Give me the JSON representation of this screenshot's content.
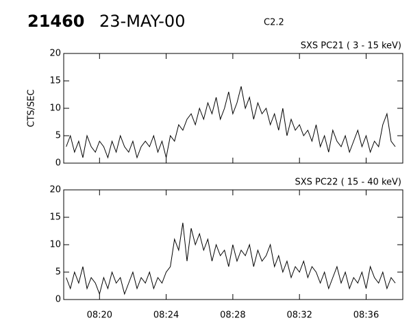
{
  "header": {
    "id": "21460",
    "date": "23-MAY-00",
    "flare_class": "C2.2"
  },
  "chart_data": [
    {
      "type": "line",
      "title": "SXS PC21  (  3 - 15 keV)",
      "y_label": "CTS/SEC",
      "color": "#000000",
      "xlim": [
        17.85,
        38.2
      ],
      "ylim": [
        0,
        20
      ],
      "xticks": [
        {
          "value": 20,
          "label": "08:20"
        },
        {
          "value": 24,
          "label": "08:24"
        },
        {
          "value": 28,
          "label": "08:28"
        },
        {
          "value": 32,
          "label": "08:32"
        },
        {
          "value": 36,
          "label": "08:36"
        }
      ],
      "yticks": [
        0,
        5,
        10,
        15,
        20
      ],
      "x": [
        18.0,
        18.25,
        18.5,
        18.75,
        19.0,
        19.25,
        19.5,
        19.75,
        20.0,
        20.25,
        20.5,
        20.75,
        21.0,
        21.25,
        21.5,
        21.75,
        22.0,
        22.25,
        22.5,
        22.75,
        23.0,
        23.25,
        23.5,
        23.75,
        24.0,
        24.25,
        24.5,
        24.75,
        25.0,
        25.25,
        25.5,
        25.75,
        26.0,
        26.25,
        26.5,
        26.75,
        27.0,
        27.25,
        27.5,
        27.75,
        28.0,
        28.25,
        28.5,
        28.75,
        29.0,
        29.25,
        29.5,
        29.75,
        30.0,
        30.25,
        30.5,
        30.75,
        31.0,
        31.25,
        31.5,
        31.75,
        32.0,
        32.25,
        32.5,
        32.75,
        33.0,
        33.25,
        33.5,
        33.75,
        34.0,
        34.25,
        34.5,
        34.75,
        35.0,
        35.25,
        35.5,
        35.75,
        36.0,
        36.25,
        36.5,
        36.75,
        37.0,
        37.25,
        37.5,
        37.75
      ],
      "values": [
        3,
        5,
        2,
        4,
        1,
        5,
        3,
        2,
        4,
        3,
        1,
        4,
        2,
        5,
        3,
        2,
        4,
        1,
        3,
        4,
        3,
        5,
        2,
        4,
        1,
        5,
        4,
        7,
        6,
        8,
        9,
        7,
        10,
        8,
        11,
        9,
        12,
        8,
        10,
        13,
        9,
        11,
        14,
        10,
        12,
        8,
        11,
        9,
        10,
        7,
        9,
        6,
        10,
        5,
        8,
        6,
        7,
        5,
        6,
        4,
        7,
        3,
        5,
        2,
        6,
        4,
        3,
        5,
        2,
        4,
        6,
        3,
        5,
        2,
        4,
        3,
        7,
        9,
        4,
        3
      ]
    },
    {
      "type": "line",
      "title": "SXS PC22  ( 15 - 40 keV)",
      "color": "#000000",
      "xlim": [
        17.85,
        38.2
      ],
      "ylim": [
        0,
        20
      ],
      "xticks": [
        {
          "value": 20,
          "label": "08:20"
        },
        {
          "value": 24,
          "label": "08:24"
        },
        {
          "value": 28,
          "label": "08:28"
        },
        {
          "value": 32,
          "label": "08:32"
        },
        {
          "value": 36,
          "label": "08:36"
        }
      ],
      "yticks": [
        0,
        5,
        10,
        15,
        20
      ],
      "x": [
        18.0,
        18.25,
        18.5,
        18.75,
        19.0,
        19.25,
        19.5,
        19.75,
        20.0,
        20.25,
        20.5,
        20.75,
        21.0,
        21.25,
        21.5,
        21.75,
        22.0,
        22.25,
        22.5,
        22.75,
        23.0,
        23.25,
        23.5,
        23.75,
        24.0,
        24.25,
        24.5,
        24.75,
        25.0,
        25.25,
        25.5,
        25.75,
        26.0,
        26.25,
        26.5,
        26.75,
        27.0,
        27.25,
        27.5,
        27.75,
        28.0,
        28.25,
        28.5,
        28.75,
        29.0,
        29.25,
        29.5,
        29.75,
        30.0,
        30.25,
        30.5,
        30.75,
        31.0,
        31.25,
        31.5,
        31.75,
        32.0,
        32.25,
        32.5,
        32.75,
        33.0,
        33.25,
        33.5,
        33.75,
        34.0,
        34.25,
        34.5,
        34.75,
        35.0,
        35.25,
        35.5,
        35.75,
        36.0,
        36.25,
        36.5,
        36.75,
        37.0,
        37.25,
        37.5,
        37.75
      ],
      "values": [
        4,
        2,
        5,
        3,
        6,
        2,
        4,
        3,
        1,
        4,
        2,
        5,
        3,
        4,
        1,
        3,
        5,
        2,
        4,
        3,
        5,
        2,
        4,
        3,
        5,
        6,
        11,
        9,
        14,
        7,
        13,
        10,
        12,
        9,
        11,
        7,
        10,
        8,
        9,
        6,
        10,
        7,
        9,
        8,
        10,
        6,
        9,
        7,
        8,
        10,
        6,
        8,
        5,
        7,
        4,
        6,
        5,
        7,
        4,
        6,
        5,
        3,
        5,
        2,
        4,
        6,
        3,
        5,
        2,
        4,
        3,
        5,
        2,
        6,
        4,
        3,
        5,
        2,
        4,
        3
      ]
    }
  ]
}
